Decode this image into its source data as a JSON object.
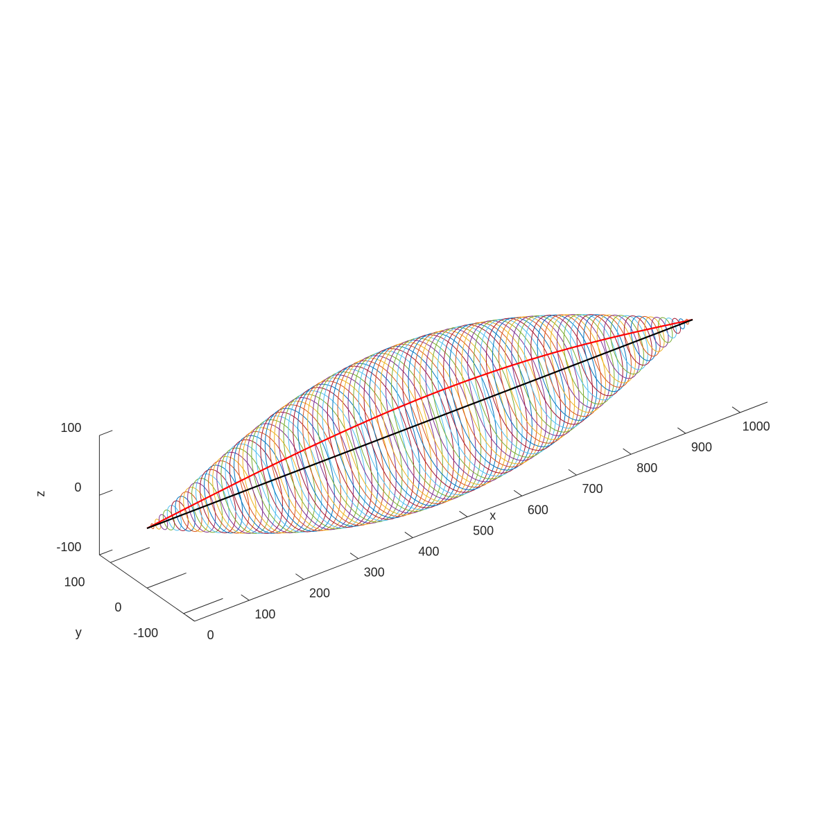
{
  "chart_data": {
    "type": "line",
    "title": "",
    "xlabel": "x",
    "ylabel": "y",
    "zlabel": "z",
    "xlim": [
      0,
      1050
    ],
    "ylim": [
      -130,
      130
    ],
    "zlim": [
      -100,
      100
    ],
    "x_ticks": [
      0,
      100,
      200,
      300,
      400,
      500,
      600,
      700,
      800,
      900,
      1000
    ],
    "y_ticks": [
      -100,
      0,
      100
    ],
    "z_ticks": [
      -100,
      0,
      100
    ],
    "x_tick_labels": [
      "0",
      "100",
      "200",
      "300",
      "400",
      "500",
      "600",
      "700",
      "800",
      "900",
      "1000"
    ],
    "y_tick_labels": [
      "-100",
      "0",
      "100"
    ],
    "z_tick_labels": [
      "-100",
      "0",
      "100"
    ],
    "grid": false,
    "envelope": {
      "x_start": 0,
      "x_end": 1000,
      "max_radius": 123,
      "profile": "half-sine"
    },
    "rings": {
      "count": 100,
      "palette": [
        "#0072BD",
        "#D95319",
        "#EDB120",
        "#7E2F8E",
        "#77AC30",
        "#4DBEEE",
        "#A2142F"
      ]
    },
    "series": [
      {
        "name": "",
        "color": "#FF0000",
        "x": [
          0,
          100,
          200,
          300,
          400,
          500,
          600,
          700,
          800,
          900,
          1000
        ],
        "y": [
          0,
          -20,
          -38,
          -52,
          -61,
          -64,
          -61,
          -52,
          -38,
          -20,
          0
        ],
        "z": [
          0,
          27,
          50,
          69,
          81,
          85,
          81,
          69,
          50,
          27,
          0
        ]
      },
      {
        "name": "",
        "color": "#000000",
        "x": [
          0,
          1000
        ],
        "y": [
          0,
          0
        ],
        "z": [
          0,
          0
        ]
      }
    ]
  }
}
